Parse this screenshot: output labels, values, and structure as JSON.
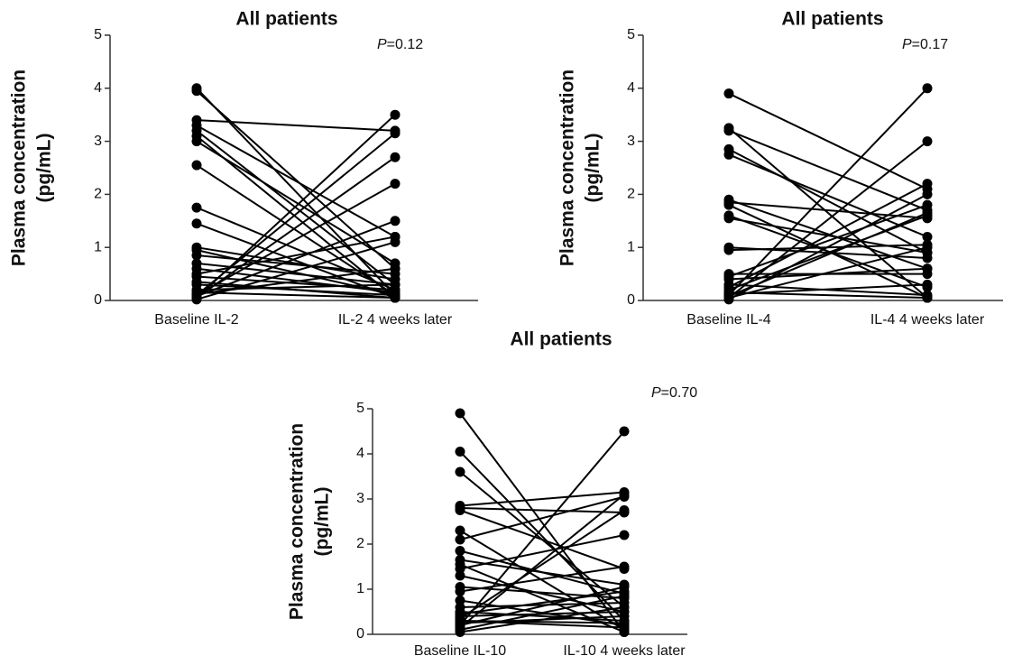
{
  "chart_data": [
    {
      "type": "paired",
      "title": "All patients",
      "annotation": {
        "italic": "P",
        "text": "=0.12"
      },
      "ylabel": [
        "Plasma concentration",
        "(pg/mL)"
      ],
      "categories": [
        "Baseline IL-2",
        "IL-2 4 weeks later"
      ],
      "color": "#000000",
      "ylim": [
        0,
        5
      ],
      "yticks": [
        0,
        1,
        2,
        3,
        4,
        5
      ],
      "series": [
        {
          "values": [
            4.0,
            0.1
          ]
        },
        {
          "values": [
            3.95,
            0.6
          ]
        },
        {
          "values": [
            3.4,
            3.2
          ]
        },
        {
          "values": [
            3.3,
            1.2
          ]
        },
        {
          "values": [
            3.2,
            0.3
          ]
        },
        {
          "values": [
            3.1,
            0.05
          ]
        },
        {
          "values": [
            3.0,
            0.7
          ]
        },
        {
          "values": [
            2.55,
            0.1
          ]
        },
        {
          "values": [
            1.75,
            0.2
          ]
        },
        {
          "values": [
            1.45,
            0.05
          ]
        },
        {
          "values": [
            1.0,
            0.4
          ]
        },
        {
          "values": [
            0.95,
            0.1
          ]
        },
        {
          "values": [
            0.85,
            0.5
          ]
        },
        {
          "values": [
            0.7,
            0.3
          ]
        },
        {
          "values": [
            0.6,
            0.15
          ]
        },
        {
          "values": [
            0.5,
            1.2
          ]
        },
        {
          "values": [
            0.45,
            0.2
          ]
        },
        {
          "values": [
            0.35,
            0.05
          ]
        },
        {
          "values": [
            0.3,
            0.1
          ]
        },
        {
          "values": [
            0.2,
            0.3
          ]
        },
        {
          "values": [
            0.15,
            0.05
          ]
        },
        {
          "values": [
            0.1,
            2.2
          ]
        },
        {
          "values": [
            0.05,
            2.7
          ]
        },
        {
          "values": [
            0.05,
            3.5
          ]
        },
        {
          "values": [
            0.1,
            3.15
          ]
        },
        {
          "values": [
            0.08,
            1.5
          ]
        },
        {
          "values": [
            0.02,
            1.1
          ]
        },
        {
          "values": [
            0.12,
            0.6
          ]
        }
      ]
    },
    {
      "type": "paired",
      "title": "All patients",
      "annotation": {
        "italic": "P",
        "text": "=0.17"
      },
      "ylabel": [
        "Plasma concentration",
        "(pg/mL)"
      ],
      "categories": [
        "Baseline IL-4",
        "IL-4 4 weeks later"
      ],
      "color": "#000000",
      "ylim": [
        0,
        5
      ],
      "yticks": [
        0,
        1,
        2,
        3,
        4,
        5
      ],
      "series": [
        {
          "values": [
            3.9,
            2.1
          ]
        },
        {
          "values": [
            3.25,
            0.05
          ]
        },
        {
          "values": [
            3.2,
            1.7
          ]
        },
        {
          "values": [
            2.85,
            0.9
          ]
        },
        {
          "values": [
            2.75,
            1.2
          ]
        },
        {
          "values": [
            1.9,
            0.6
          ]
        },
        {
          "values": [
            1.85,
            1.55
          ]
        },
        {
          "values": [
            1.8,
            0.05
          ]
        },
        {
          "values": [
            1.6,
            0.25
          ]
        },
        {
          "values": [
            1.55,
            0.9
          ]
        },
        {
          "values": [
            1.0,
            0.8
          ]
        },
        {
          "values": [
            0.95,
            1.05
          ]
        },
        {
          "values": [
            0.5,
            0.5
          ]
        },
        {
          "values": [
            0.45,
            1.8
          ]
        },
        {
          "values": [
            0.4,
            0.6
          ]
        },
        {
          "values": [
            0.3,
            0.1
          ]
        },
        {
          "values": [
            0.25,
            2.2
          ]
        },
        {
          "values": [
            0.2,
            1.6
          ]
        },
        {
          "values": [
            0.15,
            0.05
          ]
        },
        {
          "values": [
            0.1,
            4.0
          ]
        },
        {
          "values": [
            0.05,
            3.0
          ]
        },
        {
          "values": [
            0.08,
            1.65
          ]
        },
        {
          "values": [
            0.02,
            2.0
          ]
        },
        {
          "values": [
            0.12,
            0.3
          ]
        },
        {
          "values": [
            0.05,
            1.0
          ]
        }
      ]
    },
    {
      "type": "paired",
      "title": "All patients",
      "annotation": {
        "italic": "P",
        "text": "=0.70"
      },
      "ylabel": [
        "Plasma concentration",
        "(pg/mL)"
      ],
      "categories": [
        "Baseline IL-10",
        "IL-10 4 weeks later"
      ],
      "color": "#000000",
      "ylim": [
        0,
        5
      ],
      "yticks": [
        0,
        1,
        2,
        3,
        4,
        5
      ],
      "series": [
        {
          "values": [
            4.9,
            0.05
          ]
        },
        {
          "values": [
            4.05,
            0.3
          ]
        },
        {
          "values": [
            3.6,
            0.6
          ]
        },
        {
          "values": [
            2.85,
            3.15
          ]
        },
        {
          "values": [
            2.8,
            2.7
          ]
        },
        {
          "values": [
            2.75,
            1.45
          ]
        },
        {
          "values": [
            2.3,
            0.1
          ]
        },
        {
          "values": [
            2.1,
            3.05
          ]
        },
        {
          "values": [
            1.85,
            0.9
          ]
        },
        {
          "values": [
            1.65,
            1.1
          ]
        },
        {
          "values": [
            1.55,
            0.05
          ]
        },
        {
          "values": [
            1.45,
            2.2
          ]
        },
        {
          "values": [
            1.3,
            0.5
          ]
        },
        {
          "values": [
            1.05,
            0.8
          ]
        },
        {
          "values": [
            0.95,
            1.5
          ]
        },
        {
          "values": [
            0.75,
            0.2
          ]
        },
        {
          "values": [
            0.6,
            0.7
          ]
        },
        {
          "values": [
            0.5,
            0.3
          ]
        },
        {
          "values": [
            0.45,
            0.95
          ]
        },
        {
          "values": [
            0.35,
            2.75
          ]
        },
        {
          "values": [
            0.3,
            0.15
          ]
        },
        {
          "values": [
            0.25,
            0.4
          ]
        },
        {
          "values": [
            0.2,
            4.5
          ]
        },
        {
          "values": [
            0.15,
            3.1
          ]
        },
        {
          "values": [
            0.1,
            0.85
          ]
        },
        {
          "values": [
            0.05,
            0.6
          ]
        },
        {
          "values": [
            0.3,
            0.25
          ]
        },
        {
          "values": [
            0.4,
            0.5
          ]
        },
        {
          "values": [
            0.2,
            1.05
          ]
        }
      ]
    }
  ]
}
